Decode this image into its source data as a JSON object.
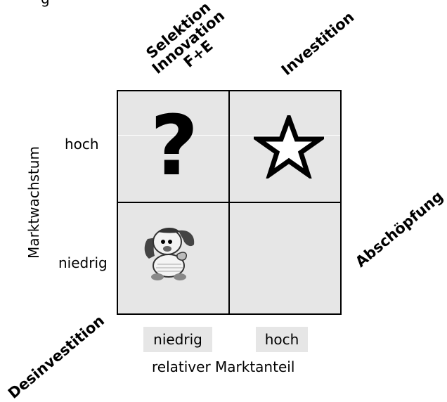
{
  "top_fragment": "g",
  "quadrant_labels": {
    "selektion": "Selektion\nInnovation\nF+E",
    "investition": "Investition",
    "abschoepfung": "Abschöpfung",
    "desinvestition": "Desinvestition"
  },
  "axes": {
    "y_label": "Marktwachstum",
    "y_high": "hoch",
    "y_low": "niedrig",
    "x_label": "relativer Marktanteil",
    "x_low": "niedrig",
    "x_high": "hoch"
  },
  "icons": {
    "top_left": "question-mark",
    "top_right": "star",
    "bottom_left": "dog",
    "bottom_right": "none"
  },
  "glyphs": {
    "question": "?"
  },
  "colors": {
    "cell_fill": "#e6e6e6",
    "border": "#000000"
  }
}
